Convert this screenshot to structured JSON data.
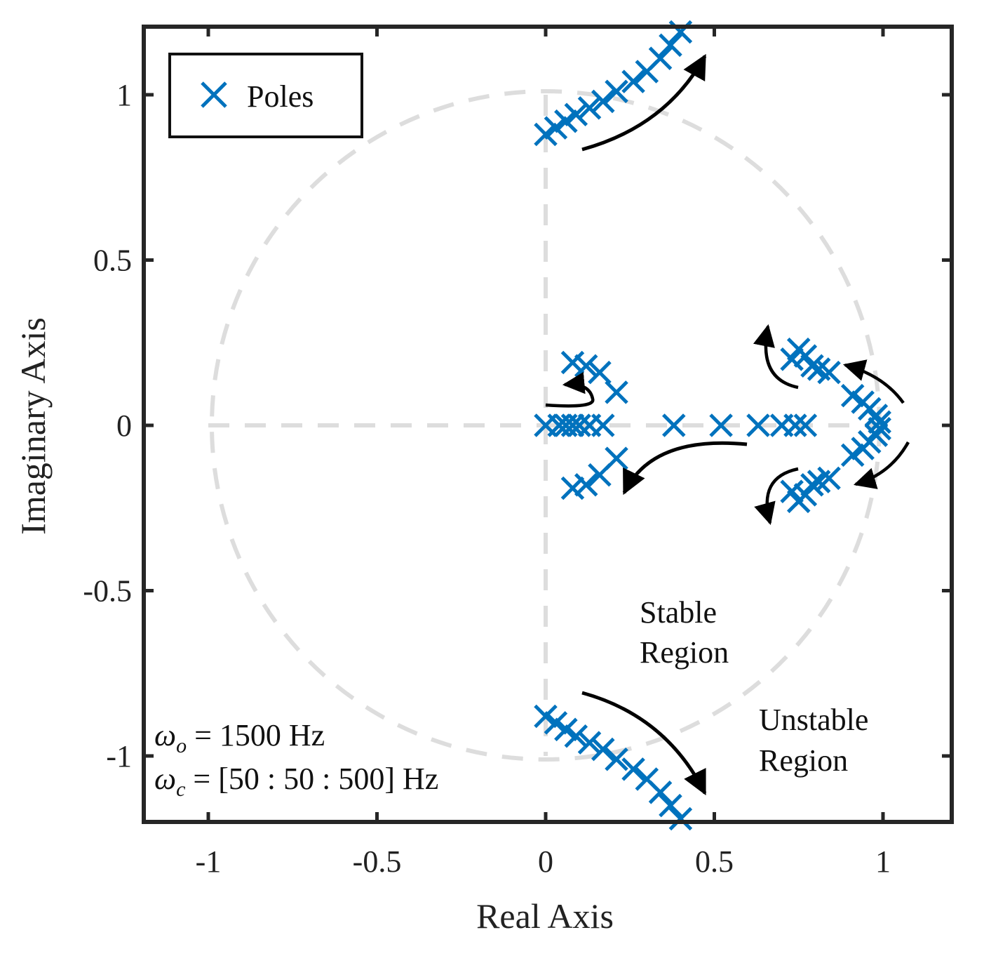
{
  "chart_data": {
    "type": "scatter",
    "title": "",
    "xlabel": "Real Axis",
    "ylabel": "Imaginary Axis",
    "xlim": [
      -1.2,
      1.2
    ],
    "ylim": [
      -1.2,
      1.2
    ],
    "xticks": [
      -1,
      -0.5,
      0,
      0.5,
      1
    ],
    "xtick_labels": [
      "-1",
      "-0.5",
      "0",
      "0.5",
      "1"
    ],
    "yticks": [
      -1,
      -0.5,
      0,
      0.5,
      1
    ],
    "ytick_labels": [
      "-1",
      "-0.5",
      "0",
      "0.5",
      "1"
    ],
    "grid": false,
    "legend": {
      "placement": "top-left",
      "entries": [
        "Poles"
      ]
    },
    "series": [
      {
        "name": "Poles",
        "marker": "x",
        "color": "#0072BD",
        "points": [
          [
            0.0,
            0.88
          ],
          [
            0.03,
            0.9
          ],
          [
            0.06,
            0.92
          ],
          [
            0.09,
            0.94
          ],
          [
            0.13,
            0.96
          ],
          [
            0.17,
            0.98
          ],
          [
            0.21,
            1.01
          ],
          [
            0.26,
            1.04
          ],
          [
            0.3,
            1.07
          ],
          [
            0.34,
            1.11
          ],
          [
            0.37,
            1.15
          ],
          [
            0.4,
            1.19
          ],
          [
            0.0,
            -0.88
          ],
          [
            0.03,
            -0.9
          ],
          [
            0.06,
            -0.92
          ],
          [
            0.09,
            -0.94
          ],
          [
            0.13,
            -0.96
          ],
          [
            0.17,
            -0.98
          ],
          [
            0.21,
            -1.01
          ],
          [
            0.26,
            -1.04
          ],
          [
            0.3,
            -1.07
          ],
          [
            0.34,
            -1.11
          ],
          [
            0.37,
            -1.15
          ],
          [
            0.4,
            -1.19
          ],
          [
            0.08,
            0.19
          ],
          [
            0.12,
            0.18
          ],
          [
            0.16,
            0.16
          ],
          [
            0.21,
            0.1
          ],
          [
            0.08,
            -0.19
          ],
          [
            0.12,
            -0.18
          ],
          [
            0.16,
            -0.15
          ],
          [
            0.21,
            -0.1
          ],
          [
            0.0,
            0.0
          ],
          [
            0.04,
            0.0
          ],
          [
            0.06,
            0.0
          ],
          [
            0.08,
            0.0
          ],
          [
            0.1,
            0.0
          ],
          [
            0.13,
            0.0
          ],
          [
            0.17,
            0.0
          ],
          [
            0.38,
            0.0
          ],
          [
            0.52,
            0.0
          ],
          [
            0.63,
            0.0
          ],
          [
            0.7,
            0.0
          ],
          [
            0.74,
            0.0
          ],
          [
            0.77,
            0.0
          ],
          [
            0.73,
            0.2
          ],
          [
            0.75,
            0.23
          ],
          [
            0.77,
            0.21
          ],
          [
            0.79,
            0.18
          ],
          [
            0.81,
            0.17
          ],
          [
            0.84,
            0.16
          ],
          [
            0.73,
            -0.2
          ],
          [
            0.75,
            -0.23
          ],
          [
            0.77,
            -0.21
          ],
          [
            0.79,
            -0.18
          ],
          [
            0.81,
            -0.17
          ],
          [
            0.84,
            -0.16
          ],
          [
            0.91,
            0.09
          ],
          [
            0.94,
            0.07
          ],
          [
            0.96,
            0.05
          ],
          [
            0.98,
            0.03
          ],
          [
            0.99,
            0.01
          ],
          [
            0.91,
            -0.09
          ],
          [
            0.94,
            -0.07
          ],
          [
            0.96,
            -0.05
          ],
          [
            0.98,
            -0.03
          ],
          [
            0.99,
            -0.01
          ]
        ]
      }
    ],
    "unit_circle": {
      "radius": 1,
      "style": "dashed",
      "color": "#DDDDDD"
    },
    "annotations": {
      "stable": [
        "Stable",
        "Region"
      ],
      "unstable": [
        "Unstable",
        "Region"
      ],
      "omega_o": {
        "symbol": "ω",
        "subscript": "o",
        "value": "1500",
        "unit": "Hz"
      },
      "omega_c": {
        "symbol": "ω",
        "subscript": "c",
        "value": "[50 : 50 : 500]",
        "unit": "Hz"
      }
    }
  }
}
